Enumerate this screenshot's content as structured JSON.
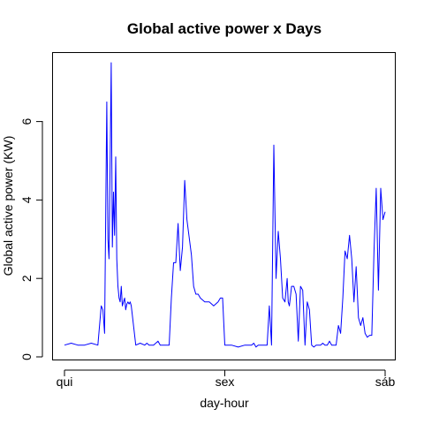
{
  "chart_data": {
    "type": "line",
    "title": "Global active power x Days",
    "xlabel": "day-hour",
    "ylabel": "Global active power (KW)",
    "xlim": [
      0,
      2880
    ],
    "ylim": [
      0,
      7.5
    ],
    "x_ticks": [
      {
        "value": 0,
        "label": "qui"
      },
      {
        "value": 1440,
        "label": "sex"
      },
      {
        "value": 2880,
        "label": "sáb"
      }
    ],
    "y_ticks": [
      {
        "value": 0,
        "label": "0"
      },
      {
        "value": 2,
        "label": "2"
      },
      {
        "value": 4,
        "label": "4"
      },
      {
        "value": 6,
        "label": "6"
      }
    ],
    "grid": false,
    "legend": "none",
    "series": [
      {
        "color": "#0000ff",
        "x": [
          0,
          60,
          120,
          180,
          240,
          300,
          330,
          345,
          360,
          380,
          390,
          400,
          410,
          420,
          430,
          440,
          450,
          460,
          470,
          480,
          490,
          500,
          510,
          520,
          530,
          540,
          550,
          560,
          570,
          580,
          590,
          600,
          640,
          680,
          720,
          740,
          760,
          780,
          800,
          840,
          860,
          880,
          900,
          920,
          940,
          960,
          980,
          1000,
          1020,
          1040,
          1060,
          1080,
          1100,
          1140,
          1160,
          1180,
          1200,
          1220,
          1260,
          1300,
          1340,
          1380,
          1400,
          1420,
          1440,
          1500,
          1560,
          1620,
          1680,
          1700,
          1720,
          1740,
          1760,
          1780,
          1800,
          1820,
          1840,
          1860,
          1880,
          1900,
          1920,
          1940,
          1960,
          1980,
          2000,
          2010,
          2020,
          2040,
          2060,
          2080,
          2100,
          2120,
          2140,
          2160,
          2180,
          2200,
          2220,
          2240,
          2260,
          2280,
          2300,
          2320,
          2340,
          2360,
          2380,
          2400,
          2420,
          2440,
          2460,
          2480,
          2500,
          2520,
          2540,
          2560,
          2580,
          2600,
          2620,
          2640,
          2660,
          2680,
          2700,
          2720,
          2740,
          2760,
          2780,
          2800,
          2820,
          2840,
          2860,
          2880
        ],
        "y": [
          0.3,
          0.35,
          0.3,
          0.3,
          0.35,
          0.3,
          1.3,
          1.2,
          0.6,
          6.5,
          3.0,
          2.5,
          5.0,
          7.5,
          2.8,
          4.2,
          3.1,
          5.1,
          2.5,
          1.8,
          1.5,
          1.4,
          1.8,
          1.3,
          1.4,
          1.5,
          1.2,
          1.35,
          1.4,
          1.35,
          1.4,
          1.3,
          0.3,
          0.35,
          0.3,
          0.35,
          0.3,
          0.3,
          0.3,
          0.4,
          0.3,
          0.3,
          0.3,
          0.3,
          0.3,
          1.5,
          2.4,
          2.4,
          3.4,
          2.2,
          2.8,
          4.5,
          3.5,
          2.6,
          1.8,
          1.6,
          1.6,
          1.5,
          1.4,
          1.4,
          1.3,
          1.4,
          1.5,
          1.5,
          0.3,
          0.3,
          0.25,
          0.3,
          0.3,
          0.35,
          0.25,
          0.3,
          0.3,
          0.3,
          0.3,
          0.3,
          1.3,
          0.3,
          5.4,
          2.0,
          3.2,
          2.5,
          1.5,
          1.4,
          2.0,
          1.4,
          1.3,
          1.8,
          1.8,
          1.6,
          0.4,
          1.8,
          1.7,
          0.3,
          1.4,
          1.2,
          0.3,
          0.25,
          0.3,
          0.3,
          0.3,
          0.35,
          0.3,
          0.3,
          0.4,
          0.3,
          0.3,
          0.3,
          0.8,
          0.6,
          1.5,
          2.7,
          2.5,
          3.1,
          2.5,
          1.4,
          2.3,
          1.0,
          0.8,
          1.0,
          0.6,
          0.5,
          0.55,
          0.55,
          2.7,
          4.3,
          1.7,
          4.3,
          3.5,
          3.7
        ]
      }
    ]
  }
}
